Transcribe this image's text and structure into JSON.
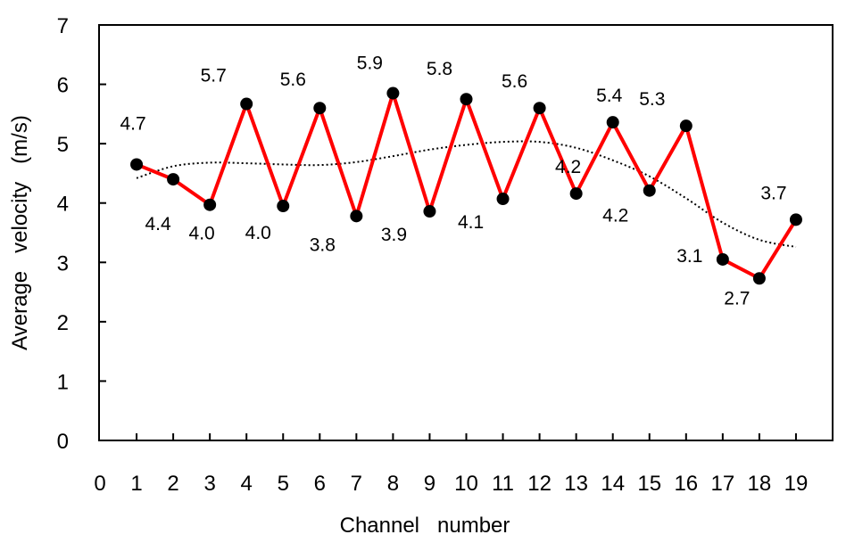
{
  "chart_data": {
    "type": "line",
    "title": "",
    "xlabel": "Channel   number",
    "ylabel": "Average   velocity   (m/s)",
    "xlim": [
      0,
      19
    ],
    "ylim": [
      0,
      7
    ],
    "x_ticks": [
      "0",
      "1",
      "2",
      "3",
      "4",
      "5",
      "6",
      "7",
      "8",
      "9",
      "10",
      "11",
      "12",
      "13",
      "14",
      "15",
      "16",
      "17",
      "18",
      "19"
    ],
    "y_ticks": [
      "0",
      "1",
      "2",
      "3",
      "4",
      "5",
      "6",
      "7"
    ],
    "grid": false,
    "legend": "none",
    "series": [
      {
        "color": "#ff0000",
        "marker_color": "#000000",
        "x": [
          1,
          2,
          3,
          4,
          5,
          6,
          7,
          8,
          9,
          10,
          11,
          12,
          13,
          14,
          15,
          16,
          17,
          18,
          19
        ],
        "y": [
          4.65,
          4.4,
          3.97,
          5.67,
          3.95,
          5.6,
          3.78,
          5.85,
          3.86,
          5.75,
          4.07,
          5.6,
          4.16,
          5.36,
          4.21,
          5.3,
          3.05,
          2.73,
          3.72
        ],
        "labels": [
          "4.7",
          "4.4",
          "4.0",
          "5.7",
          "4.0",
          "5.6",
          "3.8",
          "5.9",
          "3.9",
          "5.8",
          "4.1",
          "5.6",
          "4.2",
          "5.4",
          "4.2",
          "5.3",
          "3.1",
          "2.7",
          "3.7"
        ]
      }
    ],
    "trendline": {
      "style": "dotted",
      "color": "#000000",
      "x": [
        1,
        2,
        3,
        4,
        5,
        6,
        7,
        8,
        9,
        10,
        11,
        12,
        13,
        14,
        15,
        16,
        17,
        18,
        19
      ],
      "y": [
        4.42,
        4.62,
        4.68,
        4.67,
        4.65,
        4.64,
        4.69,
        4.79,
        4.9,
        4.98,
        5.03,
        5.03,
        4.93,
        4.72,
        4.45,
        4.08,
        3.67,
        3.38,
        3.26
      ]
    }
  }
}
